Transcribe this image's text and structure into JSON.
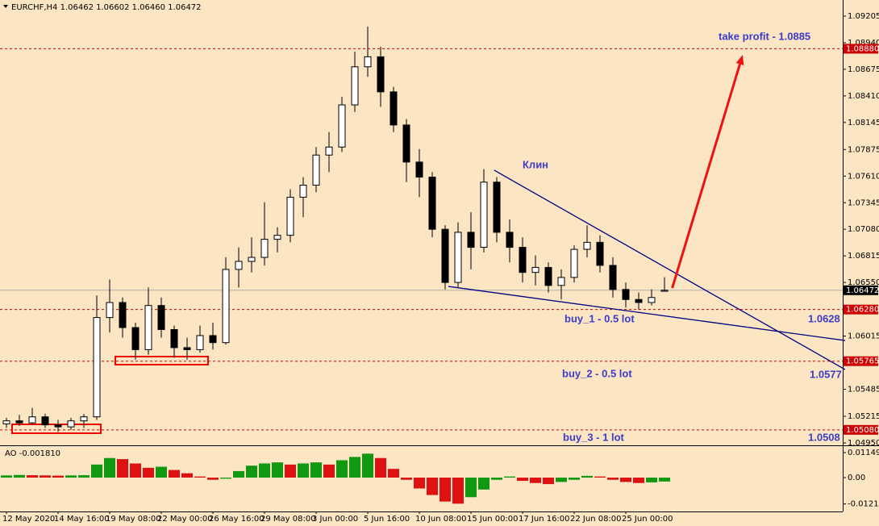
{
  "chart_data": {
    "type": "candlestick",
    "title": "EURCHF,H4  1.06462 1.06602 1.06460 1.06472",
    "categories": [
      "12 May 2020",
      null,
      null,
      null,
      "14 May 16:00",
      null,
      null,
      null,
      "19 May 08:00",
      null,
      null,
      null,
      "22 May 00:00",
      null,
      null,
      null,
      "26 May 16:00",
      null,
      null,
      null,
      "29 May 08:00",
      null,
      null,
      null,
      "3 Jun 00:00",
      null,
      null,
      null,
      "5 Jun 16:00",
      null,
      null,
      null,
      "10 Jun 08:00",
      null,
      null,
      null,
      "15 Jun 00:00",
      null,
      null,
      null,
      "17 Jun 16:00",
      null,
      null,
      null,
      "22 Jun 08:00",
      null,
      null,
      null,
      "25 Jun 00:00",
      null,
      null,
      null
    ],
    "open": [
      1.0514,
      1.0517,
      1.0515,
      1.0521,
      1.0513,
      1.0511,
      1.0517,
      1.0521,
      1.062,
      1.0635,
      1.061,
      1.0588,
      1.0632,
      1.0608,
      1.059,
      1.0588,
      1.0602,
      1.0595,
      1.0668,
      1.0676,
      1.068,
      1.0698,
      1.0702,
      1.074,
      1.0752,
      1.0782,
      1.079,
      1.0832,
      1.087,
      1.088,
      1.0845,
      1.0812,
      1.0775,
      1.076,
      1.0708,
      1.0655,
      1.0705,
      1.069,
      1.0755,
      1.0705,
      1.069,
      1.0665,
      1.067,
      1.0652,
      1.066,
      1.0688,
      1.0695,
      1.0672,
      1.0648,
      1.0638,
      1.0635,
      1.06462
    ],
    "high": [
      1.052,
      1.0523,
      1.053,
      1.0524,
      1.0518,
      1.052,
      1.0524,
      1.0642,
      1.0658,
      1.064,
      1.0615,
      1.065,
      1.064,
      1.0612,
      1.06,
      1.0612,
      1.0615,
      1.068,
      1.069,
      1.07,
      1.0735,
      1.071,
      1.0748,
      1.076,
      1.079,
      1.0805,
      1.084,
      1.0885,
      1.091,
      1.089,
      1.085,
      1.0818,
      1.0788,
      1.0765,
      1.0712,
      1.0715,
      1.0725,
      1.0768,
      1.076,
      1.0718,
      1.07,
      1.0682,
      1.0675,
      1.0668,
      1.0692,
      1.0712,
      1.0702,
      1.068,
      1.0655,
      1.0645,
      1.0648,
      1.06602
    ],
    "low": [
      1.051,
      1.0512,
      1.0513,
      1.051,
      1.0506,
      1.0508,
      1.051,
      1.0518,
      1.0605,
      1.06,
      1.0578,
      1.0583,
      1.06,
      1.058,
      1.0578,
      1.0585,
      1.0588,
      1.0593,
      1.065,
      1.0665,
      1.0672,
      1.0685,
      1.0695,
      1.072,
      1.0745,
      1.0765,
      1.0785,
      1.0825,
      1.086,
      1.083,
      1.0805,
      1.0755,
      1.074,
      1.07,
      1.0648,
      1.065,
      1.0668,
      1.0685,
      1.0695,
      1.0675,
      1.0655,
      1.0652,
      1.0645,
      1.0638,
      1.0655,
      1.068,
      1.0665,
      1.064,
      1.063,
      1.0628,
      1.0632,
      1.0646
    ],
    "close": [
      1.0517,
      1.0515,
      1.0521,
      1.0513,
      1.0511,
      1.0517,
      1.0521,
      1.062,
      1.0635,
      1.061,
      1.0588,
      1.0632,
      1.0608,
      1.059,
      1.0588,
      1.0602,
      1.0595,
      1.0668,
      1.0676,
      1.068,
      1.0698,
      1.0702,
      1.074,
      1.0752,
      1.0782,
      1.079,
      1.0832,
      1.087,
      1.088,
      1.0845,
      1.0812,
      1.0775,
      1.076,
      1.0708,
      1.0655,
      1.0705,
      1.069,
      1.0755,
      1.0705,
      1.069,
      1.0665,
      1.067,
      1.0652,
      1.066,
      1.0688,
      1.0695,
      1.0672,
      1.0648,
      1.0638,
      1.0635,
      1.064,
      1.06472
    ],
    "ylim": [
      1.04926,
      1.09366
    ],
    "yticks": [
      1.09205,
      {
        "value": 1.0894,
        "label": "1.08940"
      },
      1.08675,
      {
        "value": 1.0841,
        "label": "1.08410"
      },
      1.08145,
      1.07875,
      {
        "value": 1.0761,
        "label": "1.07610"
      },
      1.07345,
      {
        "value": 1.0708,
        "label": "1.07080"
      },
      1.06815,
      {
        "value": 1.0655,
        "label": "1.06550"
      },
      1.06015,
      1.05485,
      1.05215,
      {
        "value": 1.0495,
        "label": "1.04950"
      }
    ],
    "hlines": [
      {
        "value": 1.0888,
        "label": "1.08880",
        "color": "#cc0000"
      },
      {
        "value": 1.0628,
        "label": "1.06280",
        "color": "#cc0000"
      },
      {
        "value": 1.05765,
        "label": "1.05765",
        "color": "#cc0000"
      },
      {
        "value": 1.0508,
        "label": "1.05080",
        "color": "#cc0000"
      }
    ],
    "last_price": {
      "value": 1.06472,
      "label": "1.06472"
    },
    "trendlines": [
      {
        "x": [
          37.8,
          65
        ],
        "y": [
          1.07669,
          1.05682
        ],
        "color": "#000080"
      },
      {
        "x": [
          34.25,
          65
        ],
        "y": [
          1.0651,
          1.05971
        ],
        "color": "#000080"
      }
    ],
    "arrow": {
      "x": [
        51.6,
        57.06
      ],
      "y": [
        1.06494,
        1.08819
      ],
      "color": "#ee1111"
    },
    "annotations": [
      "take profit - 1.0885",
      "Клин",
      "buy_1 - 0.5 lot",
      "1.0628",
      "buy_2 - 0.5 lot",
      "1.0577",
      "buy_3 - 1 lot",
      "1.0508"
    ],
    "ao": {
      "label": "AO -0.001810",
      "up_color": "#119911",
      "down_color": "#dd1111",
      "values": [
        0.001,
        0.0012,
        0.0011,
        0.001,
        0.0009,
        0.001,
        0.0011,
        0.006,
        0.009,
        0.0085,
        0.0065,
        0.0045,
        0.005,
        0.0035,
        0.002,
        0.0005,
        -0.001,
        -0.0005,
        0.003,
        0.0055,
        0.0065,
        0.007,
        0.006,
        0.0065,
        0.007,
        0.006,
        0.008,
        0.0095,
        0.011,
        0.009,
        0.004,
        -0.001,
        -0.005,
        -0.008,
        -0.011,
        -0.012,
        -0.009,
        -0.0055,
        -0.001,
        0.0005,
        -0.0015,
        -0.0025,
        -0.003,
        -0.002,
        -0.001,
        0.0008,
        0.0005,
        -0.001,
        -0.002,
        -0.0025,
        -0.0022,
        -0.0018
      ],
      "ylim": [
        -0.01558,
        0.01447
      ],
      "yticks": [
        0.011497,
        {
          "value": 0,
          "label": "0.00"
        },
        -0.0121
      ]
    }
  }
}
